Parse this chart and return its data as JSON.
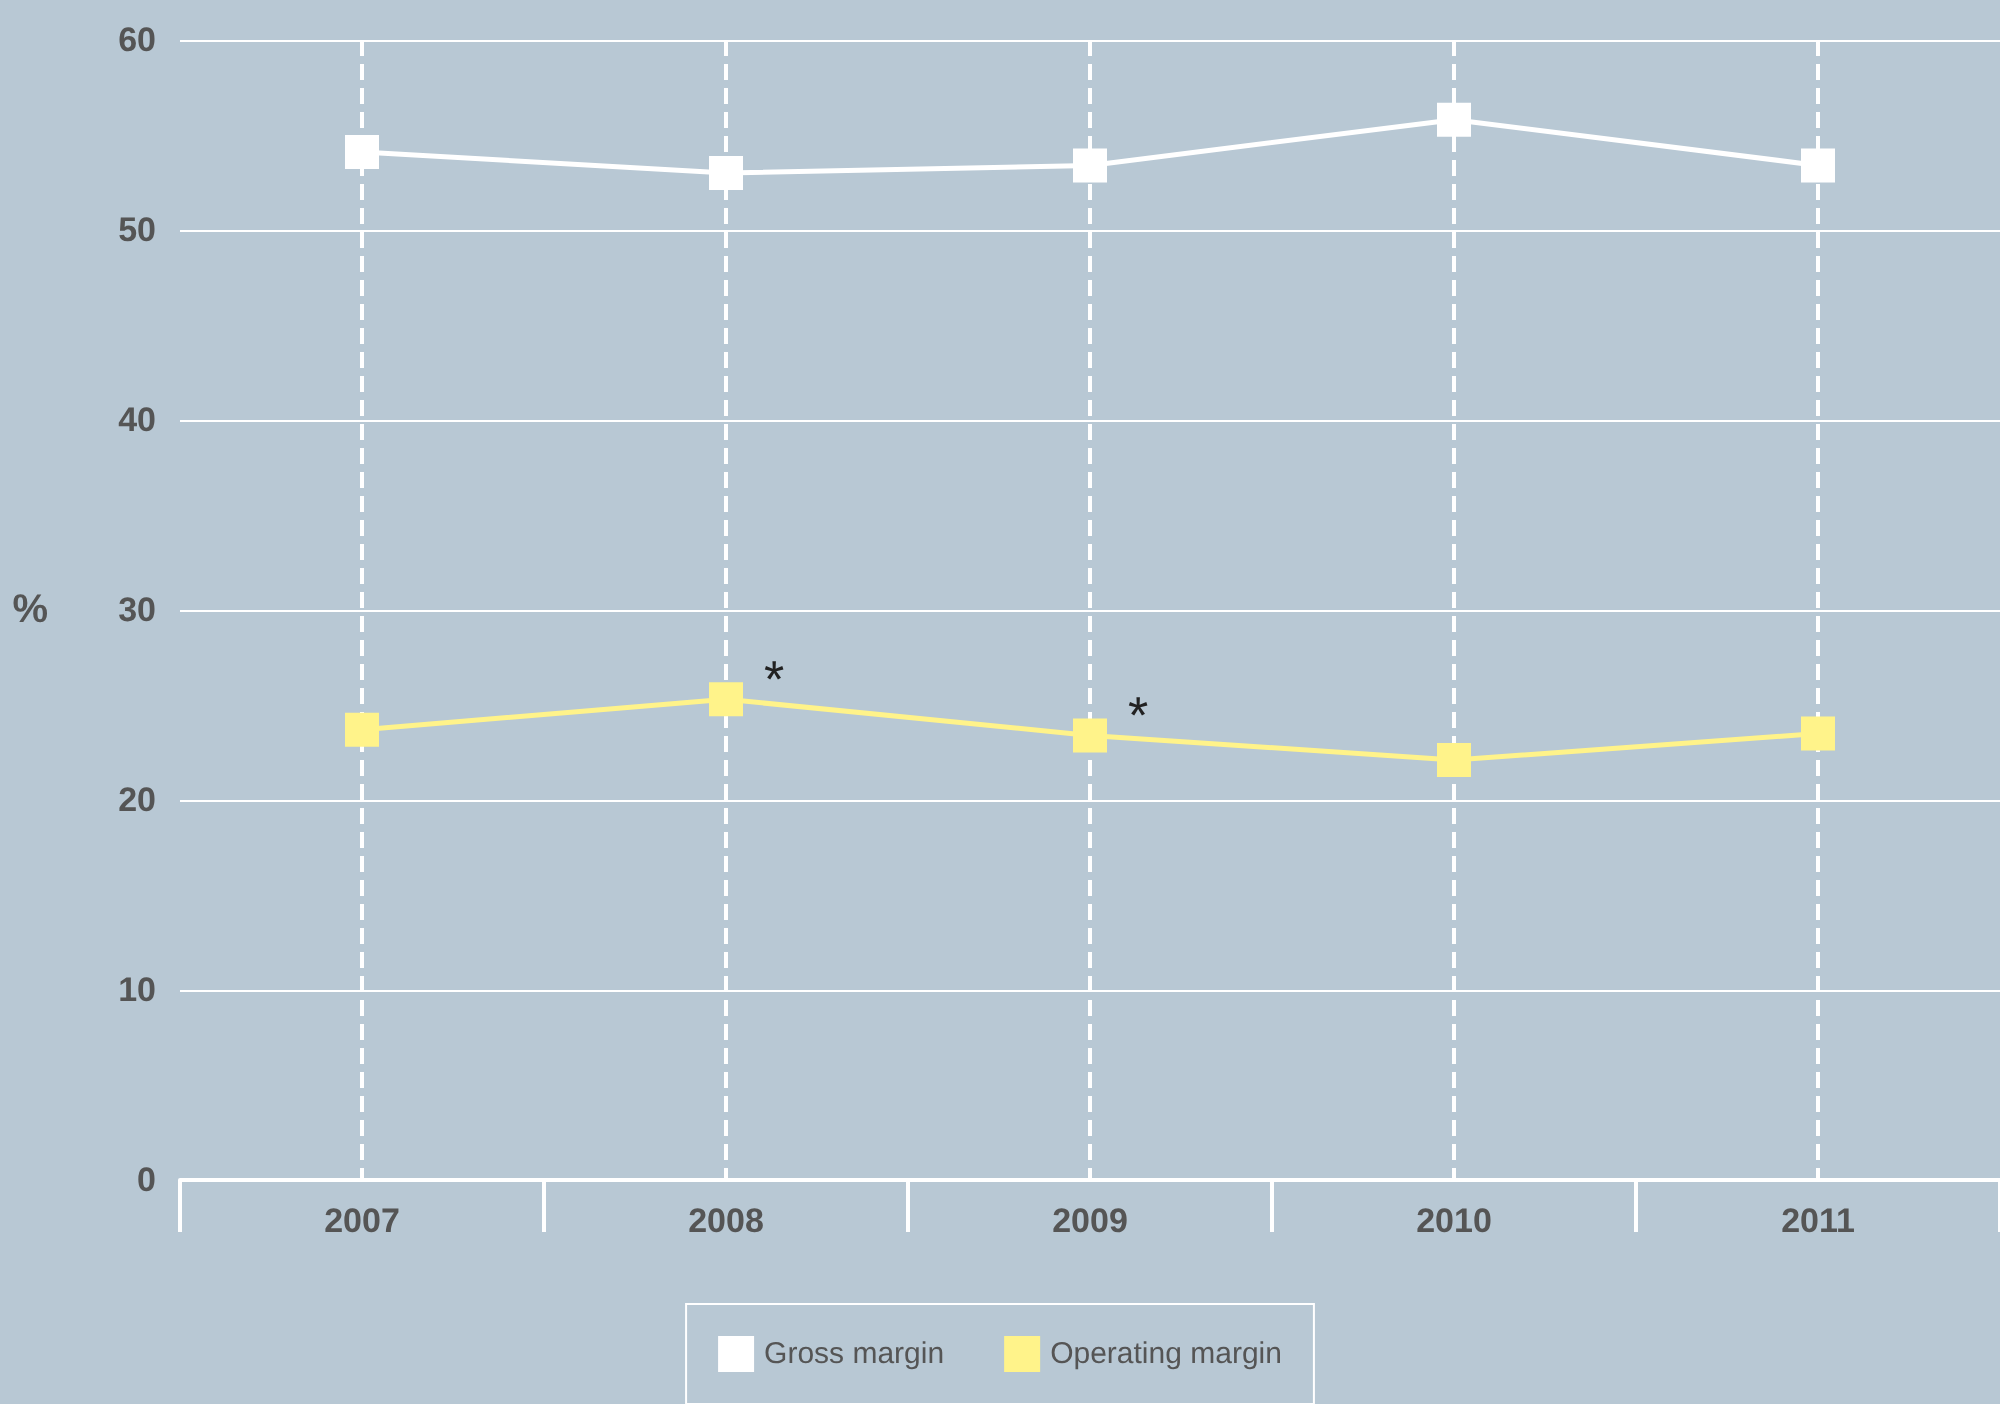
{
  "chart_data": {
    "type": "line",
    "ylabel": "%",
    "categories": [
      "2007",
      "2008",
      "2009",
      "2010",
      "2011"
    ],
    "series": [
      {
        "name": "Gross margin",
        "color": "#ffffff",
        "values": [
          54.1,
          53.0,
          53.4,
          55.8,
          53.4
        ]
      },
      {
        "name": "Operating margin",
        "color": "#fff38a",
        "values": [
          23.7,
          25.3,
          23.4,
          22.1,
          23.5
        ]
      }
    ],
    "ylim": [
      0,
      60
    ],
    "yticks": [
      0,
      10,
      20,
      30,
      40,
      50,
      60
    ],
    "grid": true,
    "legend": "bottom",
    "marker": "square",
    "line_style": "solid",
    "annotations": [
      {
        "text": "*",
        "x": "2008",
        "y": 25.3
      },
      {
        "text": "*",
        "x": "2009",
        "y": 23.4
      }
    ]
  }
}
